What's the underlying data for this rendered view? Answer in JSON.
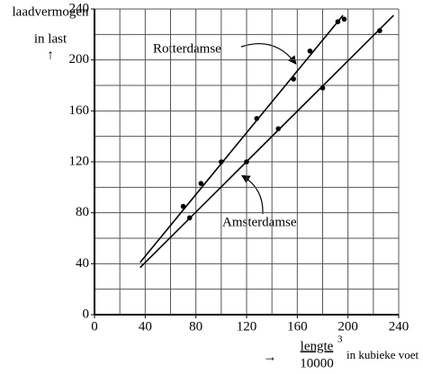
{
  "chart_data": {
    "type": "scatter",
    "ylabel": [
      "laadvermogen",
      "in last",
      "↑"
    ],
    "xlabel_arrow": "→",
    "xlabel_numerator": "lengte",
    "xlabel_exponent": "3",
    "xlabel_denominator": "10000",
    "xlabel_unit": "in kubieke voet",
    "xlim": [
      0,
      240
    ],
    "ylim": [
      0,
      240
    ],
    "xticks": [
      0,
      40,
      80,
      120,
      160,
      200,
      240
    ],
    "yticks": [
      0,
      40,
      80,
      120,
      160,
      200,
      240
    ],
    "xgrid": [
      20,
      40,
      60,
      80,
      100,
      120,
      140,
      160,
      180,
      200,
      220,
      240
    ],
    "ygrid": [
      20,
      40,
      60,
      80,
      100,
      120,
      140,
      160,
      180,
      200,
      220,
      240
    ],
    "color": "#000000",
    "series": [
      {
        "name": "Rotterdamse",
        "x": [
          70,
          84,
          100,
          128,
          157,
          170,
          192,
          197
        ],
        "values": [
          85,
          103,
          120,
          154,
          185,
          207,
          230,
          232
        ],
        "fit_x": [
          36,
          196
        ],
        "fit_y": [
          41,
          235
        ]
      },
      {
        "name": "Amsterdamse",
        "x": [
          75,
          120,
          145,
          180,
          225
        ],
        "values": [
          76,
          120,
          146,
          178,
          223
        ],
        "fit_x": [
          36,
          236
        ],
        "fit_y": [
          37,
          235
        ]
      }
    ]
  }
}
